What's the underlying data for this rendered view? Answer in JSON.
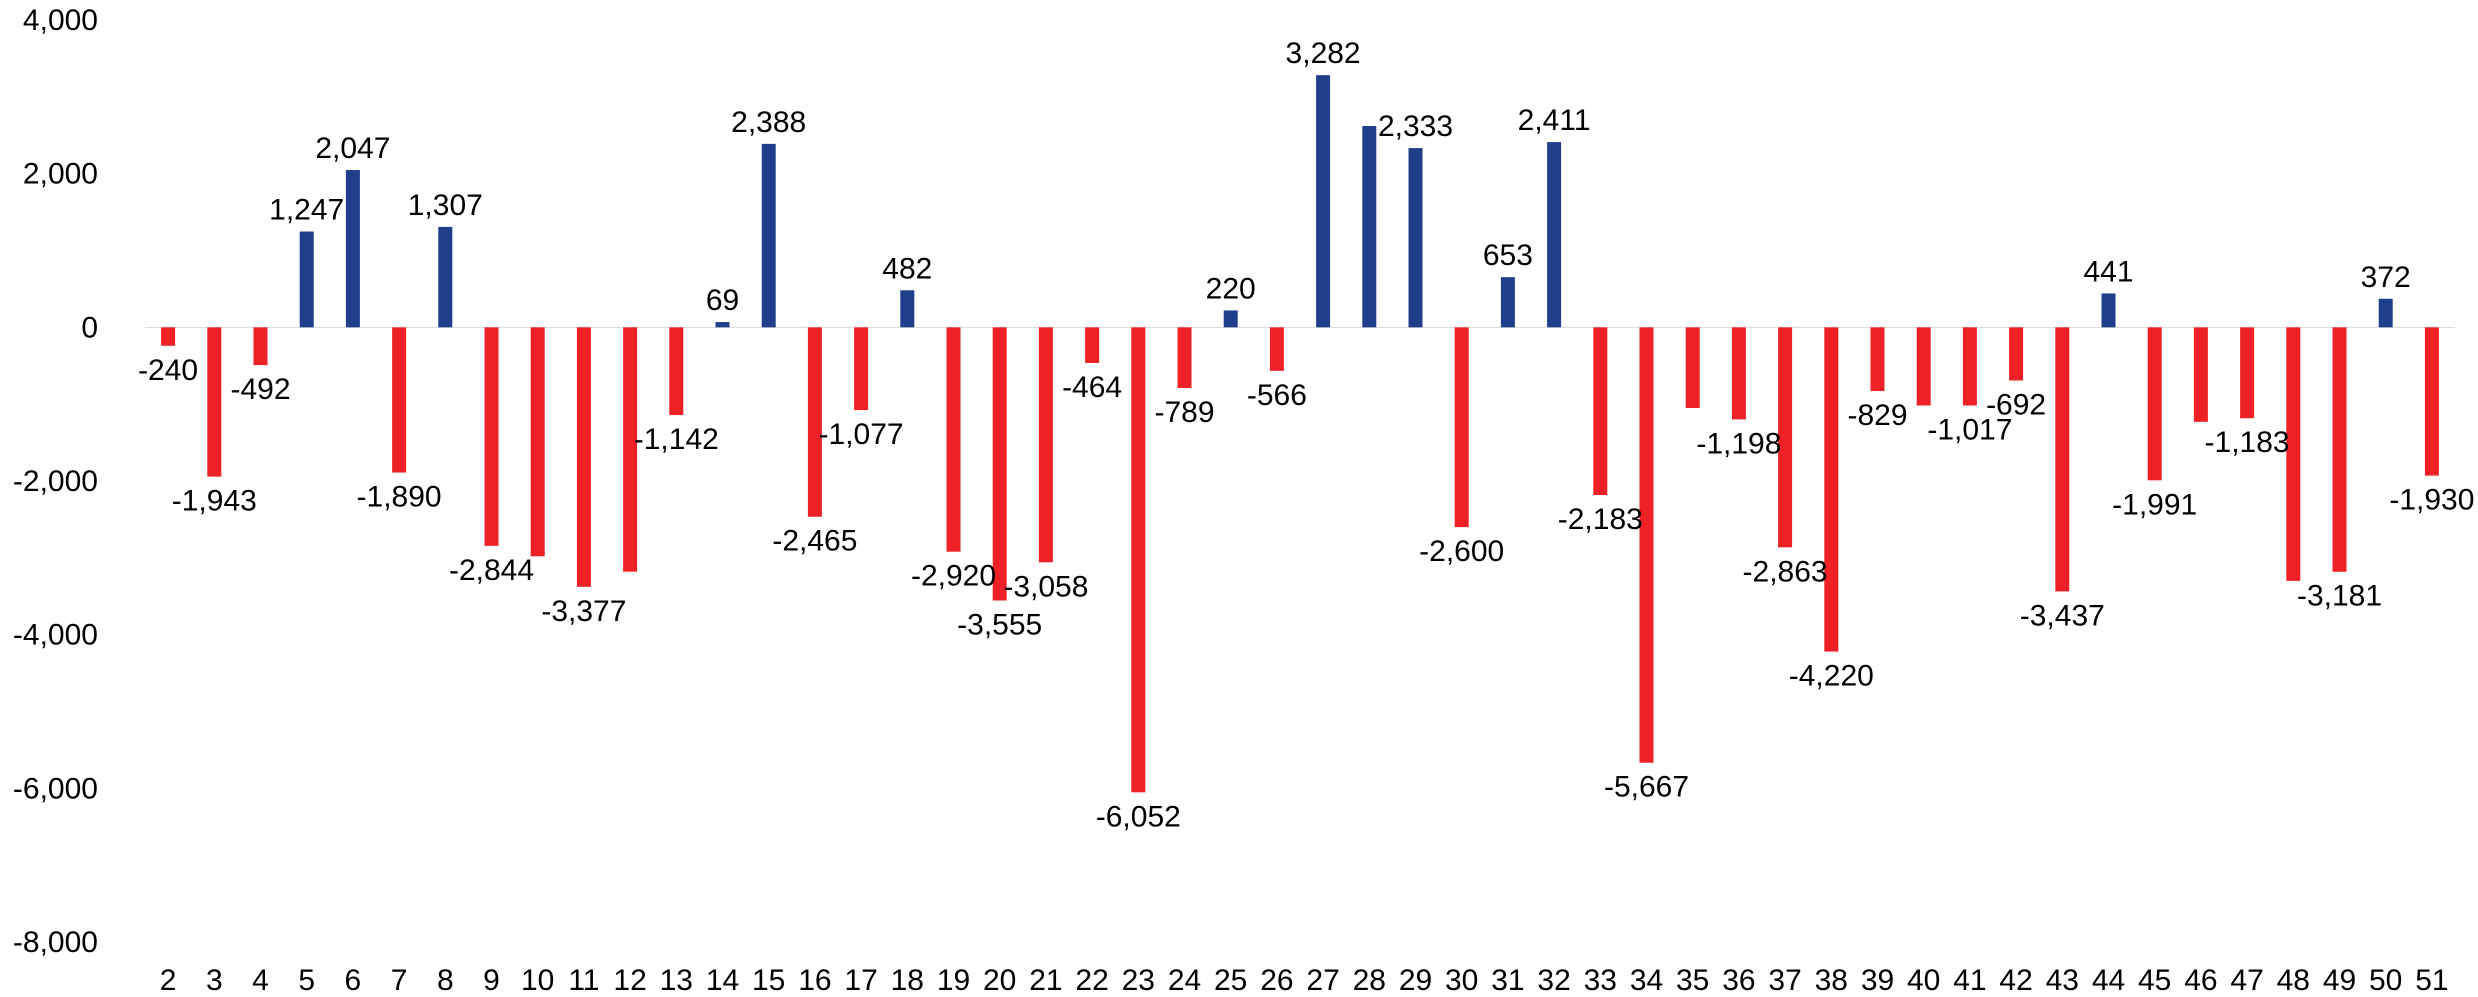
{
  "chart_data": {
    "type": "bar",
    "title": "",
    "xlabel": "",
    "ylabel": "",
    "ylim": [
      -8000,
      4000
    ],
    "yticks": [
      4000,
      2000,
      0,
      -2000,
      -4000,
      -6000,
      -8000
    ],
    "ytick_labels": [
      "4,000",
      "2,000",
      "0",
      "-2,000",
      "-4,000",
      "-6,000",
      "-8,000"
    ],
    "grid": false,
    "legend": "none",
    "colors": {
      "positive": "#1f3f8a",
      "negative": "#ee2226"
    },
    "categories": [
      "2",
      "3",
      "4",
      "5",
      "6",
      "7",
      "8",
      "9",
      "10",
      "11",
      "12",
      "13",
      "14",
      "15",
      "16",
      "17",
      "18",
      "19",
      "20",
      "21",
      "22",
      "23",
      "24",
      "25",
      "26",
      "27",
      "28",
      "29",
      "30",
      "31",
      "32",
      "33",
      "34",
      "35",
      "36",
      "37",
      "38",
      "39",
      "40",
      "41",
      "42",
      "43",
      "44",
      "45",
      "46",
      "47",
      "48",
      "49",
      "50",
      "51"
    ],
    "values": [
      -240,
      -1943,
      -492,
      1247,
      2047,
      -1890,
      1307,
      -2844,
      -2980,
      -3377,
      -3180,
      -1142,
      69,
      2388,
      -2465,
      -1077,
      482,
      -2920,
      -3555,
      -3058,
      -464,
      -6052,
      -789,
      220,
      -566,
      3282,
      2620,
      2333,
      -2600,
      653,
      2411,
      -2183,
      -5667,
      -1050,
      -1198,
      -2863,
      -4220,
      -829,
      -1017,
      -1017,
      -692,
      -3437,
      441,
      -1991,
      -1230,
      -1183,
      -3300,
      -3181,
      372,
      -1930
    ],
    "data_labels": [
      "-240",
      "-1,943",
      "-492",
      "1,247",
      "2,047",
      "-1,890",
      "1,307",
      "-2,844",
      "",
      "-3,377",
      "",
      "-1,142",
      "69",
      "2,388",
      "-2,465",
      "-1,077",
      "482",
      "-2,920",
      "-3,555",
      "-3,058",
      "-464",
      "-6,052",
      "-789",
      "220",
      "-566",
      "3,282",
      "",
      "2,333",
      "-2,600",
      "653",
      "2,411",
      "-2,183",
      "-5,667",
      "",
      "-1,198",
      "-2,863",
      "-4,220",
      "-829",
      "",
      "-1,017",
      "-692",
      "-3,437",
      "441",
      "-1,991",
      "",
      "-1,183",
      "",
      "-3,181",
      "372",
      "-1,930"
    ]
  }
}
